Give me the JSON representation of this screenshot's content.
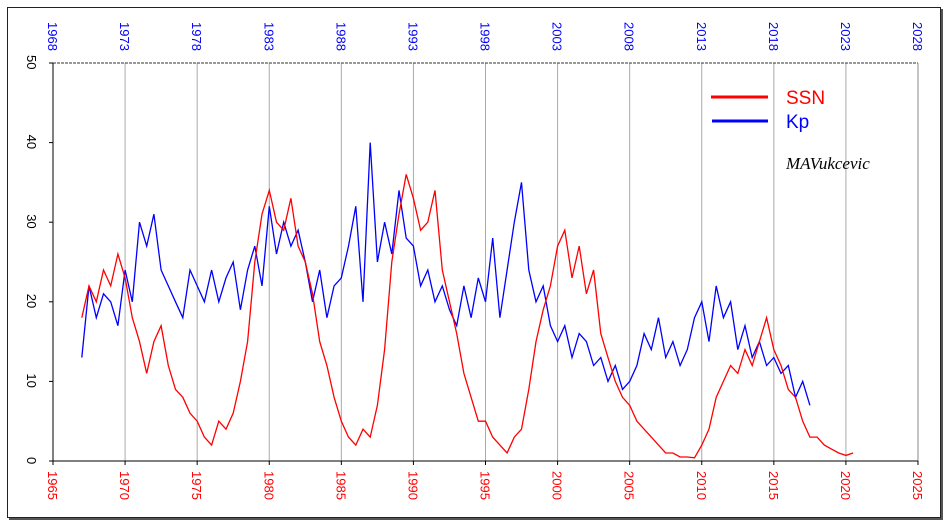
{
  "chart_data": {
    "type": "line",
    "title": "",
    "xlabel": "",
    "ylabel": "",
    "bottom_axis": {
      "label_color": "#ff0000",
      "range": [
        1965,
        2025
      ],
      "ticks": [
        "1965",
        "1970",
        "1975",
        "1980",
        "1985",
        "1990",
        "1995",
        "2000",
        "2005",
        "2010",
        "2015",
        "2020",
        "2025"
      ]
    },
    "top_axis": {
      "label_color": "#0000ff",
      "range": [
        1968,
        2028
      ],
      "ticks": [
        "1968",
        "1973",
        "1978",
        "1983",
        "1988",
        "1993",
        "1998",
        "2003",
        "2008",
        "2013",
        "2018",
        "2023",
        "2028"
      ]
    },
    "ylim": [
      0,
      50
    ],
    "y_ticks": [
      "0",
      "10",
      "20",
      "30",
      "40",
      "50"
    ],
    "grid": "vertical",
    "legend_placement": "top-right",
    "signature": "MAVukcevic",
    "series": [
      {
        "name": "SSN",
        "color": "#ff0000",
        "axis": "bottom",
        "x": [
          1967,
          1967.5,
          1968,
          1968.5,
          1969,
          1969.5,
          1970,
          1970.5,
          1971,
          1971.5,
          1972,
          1972.5,
          1973,
          1973.5,
          1974,
          1974.5,
          1975,
          1975.5,
          1976,
          1976.5,
          1977,
          1977.5,
          1978,
          1978.5,
          1979,
          1979.5,
          1980,
          1980.5,
          1981,
          1981.5,
          1982,
          1982.5,
          1983,
          1983.5,
          1984,
          1984.5,
          1985,
          1985.5,
          1986,
          1986.5,
          1987,
          1987.5,
          1988,
          1988.5,
          1989,
          1989.5,
          1990,
          1990.5,
          1991,
          1991.5,
          1992,
          1992.5,
          1993,
          1993.5,
          1994,
          1994.5,
          1995,
          1995.5,
          1996,
          1996.5,
          1997,
          1997.5,
          1998,
          1998.5,
          1999,
          1999.5,
          2000,
          2000.5,
          2001,
          2001.5,
          2002,
          2002.5,
          2003,
          2003.5,
          2004,
          2004.5,
          2005,
          2005.5,
          2006,
          2006.5,
          2007,
          2007.5,
          2008,
          2008.5,
          2009,
          2009.5,
          2010,
          2010.5,
          2011,
          2011.5,
          2012,
          2012.5,
          2013,
          2013.5,
          2014,
          2014.5,
          2015,
          2015.5,
          2016,
          2016.5,
          2017,
          2017.5,
          2018,
          2018.5,
          2019,
          2019.5,
          2020,
          2020.5
        ],
        "values": [
          18,
          22,
          20,
          24,
          22,
          26,
          23,
          18,
          15,
          11,
          15,
          17,
          12,
          9,
          8,
          6,
          5,
          3,
          2,
          5,
          4,
          6,
          10,
          15,
          25,
          31,
          34,
          30,
          29,
          33,
          27,
          25,
          21,
          15,
          12,
          8,
          5,
          3,
          2,
          4,
          3,
          7,
          14,
          25,
          31,
          36,
          33,
          29,
          30,
          34,
          24,
          20,
          16,
          11,
          8,
          5,
          5,
          3,
          2,
          1,
          3,
          4,
          9,
          15,
          19,
          22,
          27,
          29,
          23,
          27,
          21,
          24,
          16,
          13,
          10,
          8,
          7,
          5,
          4,
          3,
          2,
          1,
          1,
          0.5,
          0.5,
          0.4,
          2,
          4,
          8,
          10,
          12,
          11,
          14,
          12,
          15,
          18,
          14,
          12,
          9,
          8,
          5,
          3,
          3,
          2,
          1.5,
          1,
          0.7,
          1
        ]
      },
      {
        "name": "Kp",
        "color": "#0000ff",
        "axis": "top",
        "x": [
          1970,
          1970.5,
          1971,
          1971.5,
          1972,
          1972.5,
          1973,
          1973.5,
          1974,
          1974.5,
          1975,
          1975.5,
          1976,
          1976.5,
          1977,
          1977.5,
          1978,
          1978.5,
          1979,
          1979.5,
          1980,
          1980.5,
          1981,
          1981.5,
          1982,
          1982.5,
          1983,
          1983.5,
          1984,
          1984.5,
          1985,
          1985.5,
          1986,
          1986.5,
          1987,
          1987.5,
          1988,
          1988.5,
          1989,
          1989.5,
          1990,
          1990.5,
          1991,
          1991.5,
          1992,
          1992.5,
          1993,
          1993.5,
          1994,
          1994.5,
          1995,
          1995.5,
          1996,
          1996.5,
          1997,
          1997.5,
          1998,
          1998.5,
          1999,
          1999.5,
          2000,
          2000.5,
          2001,
          2001.5,
          2002,
          2002.5,
          2003,
          2003.5,
          2004,
          2004.5,
          2005,
          2005.5,
          2006,
          2006.5,
          2007,
          2007.5,
          2008,
          2008.5,
          2009,
          2009.5,
          2010,
          2010.5,
          2011,
          2011.5,
          2012,
          2012.5,
          2013,
          2013.5,
          2014,
          2014.5,
          2015,
          2015.5,
          2016,
          2016.5,
          2017,
          2017.5,
          2018,
          2018.5,
          2019,
          2019.5,
          2020,
          2020.5
        ],
        "values": [
          13,
          22,
          18,
          21,
          20,
          17,
          24,
          20,
          30,
          27,
          31,
          24,
          22,
          20,
          18,
          24,
          22,
          20,
          24,
          20,
          23,
          25,
          19,
          24,
          27,
          22,
          32,
          26,
          30,
          27,
          29,
          25,
          20,
          24,
          18,
          22,
          23,
          27,
          32,
          20,
          40,
          25,
          30,
          26,
          34,
          28,
          27,
          22,
          24,
          20,
          22,
          19,
          17,
          22,
          18,
          23,
          20,
          28,
          18,
          24,
          30,
          35,
          24,
          20,
          22,
          17,
          15,
          17,
          13,
          16,
          15,
          12,
          13,
          10,
          12,
          9,
          10,
          12,
          16,
          14,
          18,
          13,
          15,
          12,
          14,
          18,
          20,
          15,
          22,
          18,
          20,
          14,
          17,
          13,
          15,
          12,
          13,
          11,
          12,
          8,
          10,
          7
        ]
      }
    ]
  }
}
